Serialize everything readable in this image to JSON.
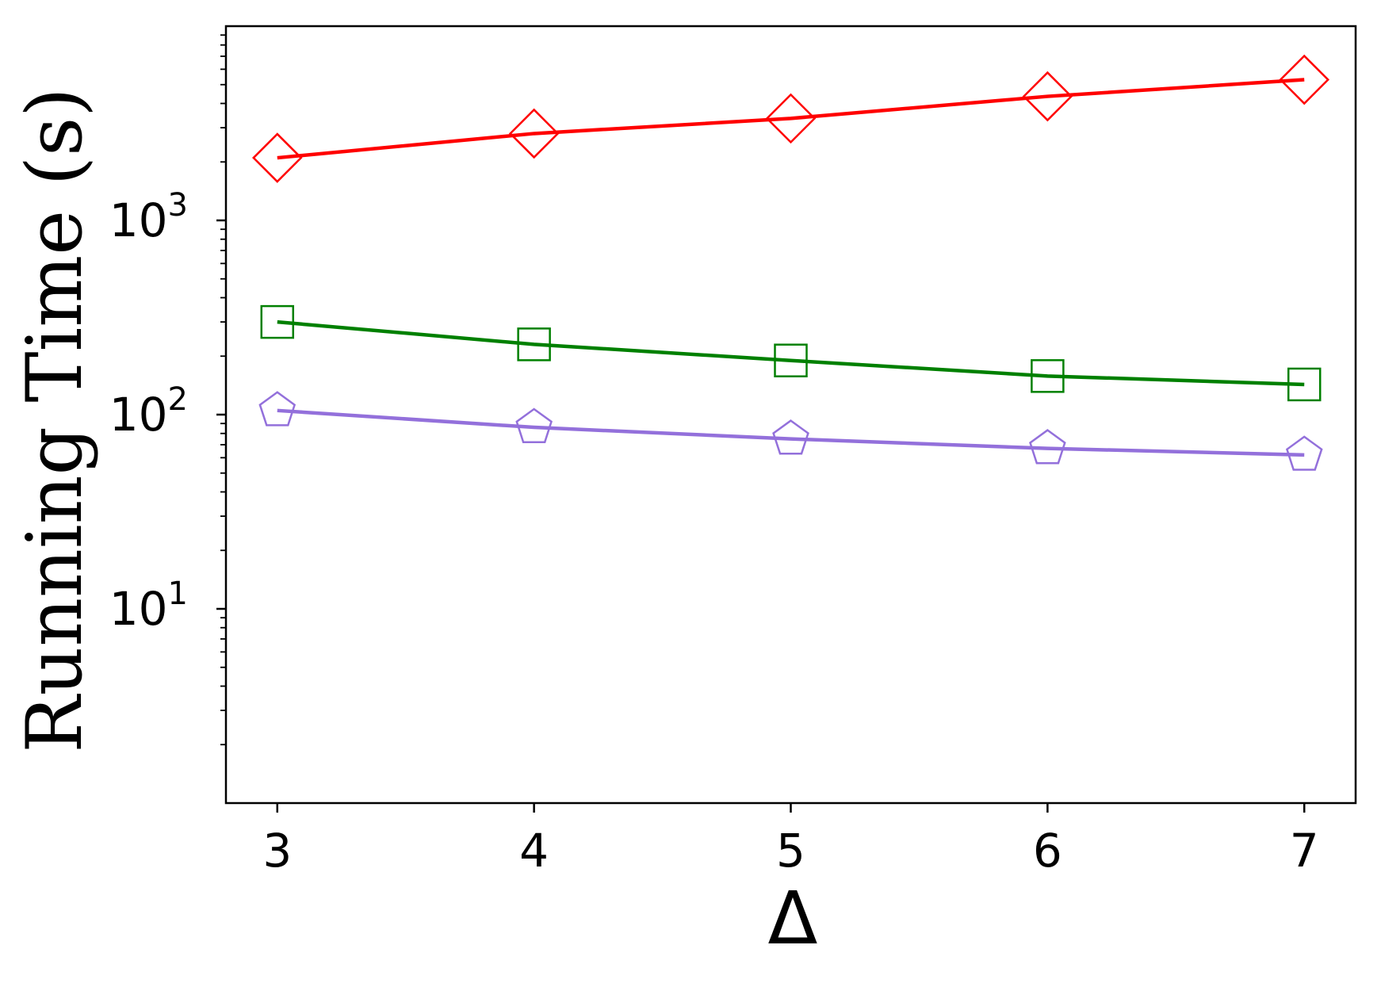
{
  "chart_data": {
    "type": "line",
    "xlabel": "Δ",
    "ylabel": "Running Time (s)",
    "yscale": "log",
    "x": [
      3,
      4,
      5,
      6,
      7
    ],
    "xticks": [
      "3",
      "4",
      "5",
      "6",
      "7"
    ],
    "xlim": [
      2.8,
      7.2
    ],
    "ylim": [
      1,
      10000
    ],
    "yticks": [
      {
        "value": 10,
        "base": "10",
        "exp": "1"
      },
      {
        "value": 100,
        "base": "10",
        "exp": "2"
      },
      {
        "value": 1000,
        "base": "10",
        "exp": "3"
      }
    ],
    "grid": false,
    "legend": "none",
    "series": [
      {
        "color": "#ff0000",
        "marker": "diamond",
        "values": [
          2100,
          2800,
          3350,
          4350,
          5300
        ]
      },
      {
        "color": "#008000",
        "marker": "square",
        "values": [
          300,
          230,
          190,
          158,
          143
        ]
      },
      {
        "color": "#9370db",
        "marker": "pentagon",
        "values": [
          105,
          86,
          75,
          67,
          62
        ]
      }
    ]
  }
}
